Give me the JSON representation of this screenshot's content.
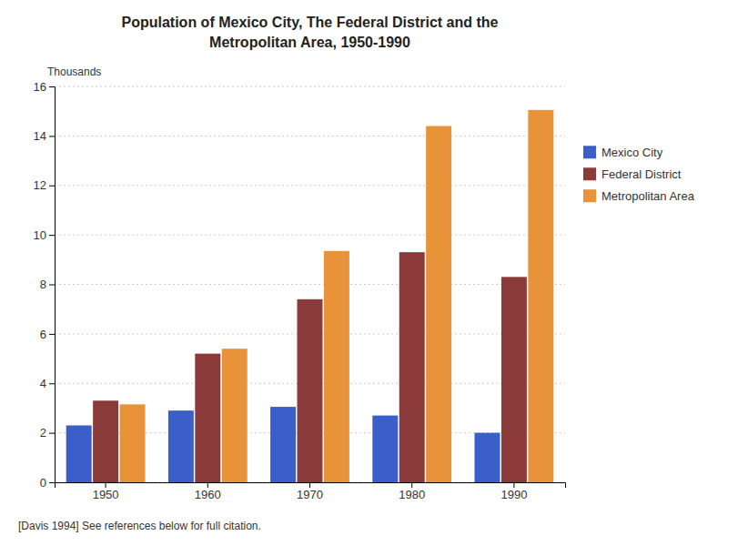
{
  "chart_data": {
    "type": "bar",
    "title": "Population of Mexico City, The Federal District and the\nMetropolitan Area, 1950-1990",
    "ylabel": "Thousands",
    "annotations": [
      "[Davis 1994] See references below for full citation."
    ],
    "categories": [
      "1950",
      "1960",
      "1970",
      "1980",
      "1990"
    ],
    "series": [
      {
        "name": "Mexico City",
        "color": "#3A5FC8",
        "values": [
          2.3,
          2.9,
          3.05,
          2.7,
          2.0
        ]
      },
      {
        "name": "Federal District",
        "color": "#8B3A3A",
        "values": [
          3.3,
          5.2,
          7.4,
          9.3,
          8.3
        ]
      },
      {
        "name": "Metropolitan Area",
        "color": "#E8923A",
        "values": [
          3.15,
          5.4,
          9.35,
          14.4,
          15.05
        ]
      }
    ],
    "ylim": [
      0,
      16
    ],
    "yticks": [
      0,
      2,
      4,
      6,
      8,
      10,
      12,
      14,
      16
    ],
    "grid": true,
    "legend": "right"
  }
}
